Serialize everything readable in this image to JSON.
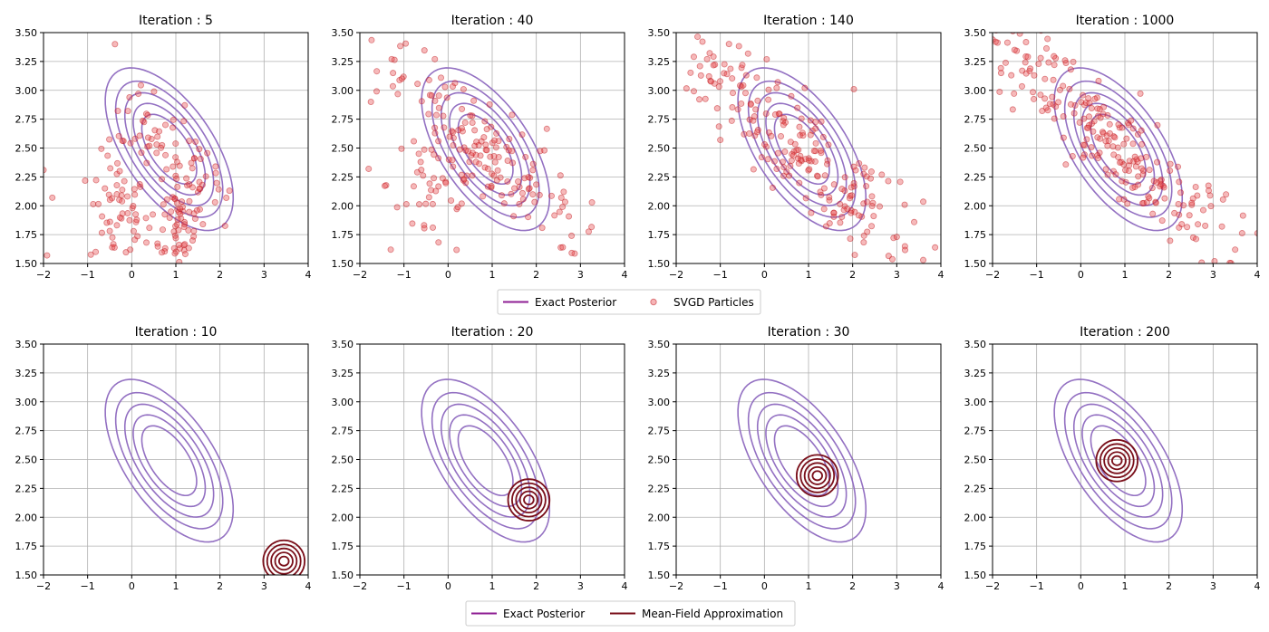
{
  "colors": {
    "exact_posterior": "#9370c2",
    "svgd_particles": "#e8474a",
    "svgd_particle_edge": "#c0151b",
    "mean_field": "#7a0f1a",
    "grid": "#b0b0b0",
    "axis": "#000000",
    "legend_exact_line": "#8e1e93"
  },
  "legends": [
    {
      "items": [
        {
          "label": "Exact Posterior",
          "kind": "line"
        },
        {
          "label": "SVGD Particles",
          "kind": "marker"
        }
      ]
    },
    {
      "items": [
        {
          "label": "Exact Posterior",
          "kind": "line"
        },
        {
          "label": "Mean-Field Approximation",
          "kind": "line-dark"
        }
      ]
    }
  ],
  "chart_data": [
    {
      "type": "scatter",
      "title": "Iteration : 5",
      "row": 0,
      "xlim": [
        -2,
        4
      ],
      "ylim": [
        1.5,
        3.5
      ],
      "xticks": [
        "−2",
        "−1",
        "0",
        "1",
        "2",
        "3",
        "4"
      ],
      "yticks": [
        "1.50",
        "1.75",
        "2.00",
        "2.25",
        "2.50",
        "2.75",
        "3.00",
        "3.25",
        "3.50"
      ],
      "grid": true,
      "posterior": {
        "mean": [
          0.85,
          2.49
        ],
        "stretch_scales": [
          1.05,
          1.38,
          1.7,
          2.05,
          2.45
        ],
        "semi_major": 1.52,
        "semi_minor": 0.1,
        "direction": [
          -0.95,
          0.32
        ]
      },
      "particles": {
        "clusters": [
          {
            "center": [
              0.85,
              2.49
            ],
            "n": 70,
            "spread": 0.95
          },
          {
            "center": [
              -0.3,
              1.95
            ],
            "n": 55,
            "spread": 0.55,
            "spread_y": 0.25
          },
          {
            "center": [
              1.05,
              1.85
            ],
            "n": 60,
            "spread": 0.55,
            "spread_y": 0.2
          }
        ],
        "extra_points": [
          [
            -0.38,
            3.4
          ],
          [
            -2.0,
            2.31
          ],
          [
            -1.8,
            2.07
          ],
          [
            -1.92,
            1.57
          ],
          [
            1.9,
            2.34
          ],
          [
            0.15,
            2.97
          ]
        ]
      }
    },
    {
      "type": "scatter",
      "title": "Iteration : 40",
      "row": 0,
      "xlim": [
        -2,
        4
      ],
      "ylim": [
        1.5,
        3.5
      ],
      "xticks": [
        "−2",
        "−1",
        "0",
        "1",
        "2",
        "3",
        "4"
      ],
      "yticks": [
        "1.50",
        "1.75",
        "2.00",
        "2.25",
        "2.50",
        "2.75",
        "3.00",
        "3.25",
        "3.50"
      ],
      "grid": true,
      "posterior": {
        "mean": [
          0.85,
          2.49
        ],
        "stretch_scales": [
          1.05,
          1.38,
          1.7,
          2.05,
          2.45
        ],
        "semi_major": 1.52,
        "semi_minor": 0.1,
        "direction": [
          -0.95,
          0.32
        ]
      },
      "particles": {
        "clusters": [
          {
            "center": [
              0.85,
              2.49
            ],
            "n": 150,
            "spread": 1.7
          },
          {
            "center": [
              -0.3,
              2.2
            ],
            "n": 45,
            "spread": 0.9,
            "spread_y": 0.35
          }
        ],
        "extra_points": [
          [
            -0.3,
            3.27
          ],
          [
            -1.75,
            2.9
          ],
          [
            -1.8,
            2.32
          ],
          [
            -1.3,
            1.62
          ],
          [
            2.8,
            1.74
          ],
          [
            2.6,
            1.64
          ]
        ]
      }
    },
    {
      "type": "scatter",
      "title": "Iteration : 140",
      "row": 0,
      "xlim": [
        -2,
        4
      ],
      "ylim": [
        1.5,
        3.5
      ],
      "xticks": [
        "−2",
        "−1",
        "0",
        "1",
        "2",
        "3",
        "4"
      ],
      "yticks": [
        "1.50",
        "1.75",
        "2.00",
        "2.25",
        "2.50",
        "2.75",
        "3.00",
        "3.25",
        "3.50"
      ],
      "grid": true,
      "posterior": {
        "mean": [
          0.85,
          2.49
        ],
        "stretch_scales": [
          1.05,
          1.38,
          1.7,
          2.05,
          2.45
        ],
        "semi_major": 1.52,
        "semi_minor": 0.1,
        "direction": [
          -0.95,
          0.32
        ]
      },
      "particles": {
        "clusters": [
          {
            "center": [
              0.85,
              2.49
            ],
            "n": 220,
            "spread": 2.3
          }
        ],
        "extra_points": [
          [
            -1.6,
            3.29
          ],
          [
            -1.3,
            3.27
          ],
          [
            -0.5,
            3.22
          ],
          [
            3.6,
            1.53
          ],
          [
            3.0,
            1.73
          ],
          [
            -1.0,
            2.57
          ]
        ]
      }
    },
    {
      "type": "scatter",
      "title": "Iteration : 1000",
      "row": 0,
      "xlim": [
        -2,
        4
      ],
      "ylim": [
        1.5,
        3.5
      ],
      "xticks": [
        "−2",
        "−1",
        "0",
        "1",
        "2",
        "3",
        "4"
      ],
      "yticks": [
        "1.50",
        "1.75",
        "2.00",
        "2.25",
        "2.50",
        "2.75",
        "3.00",
        "3.25",
        "3.50"
      ],
      "grid": true,
      "posterior": {
        "mean": [
          0.85,
          2.49
        ],
        "stretch_scales": [
          1.05,
          1.38,
          1.7,
          2.05,
          2.45
        ],
        "semi_major": 1.52,
        "semi_minor": 0.1,
        "direction": [
          -0.95,
          0.32
        ]
      },
      "particles": {
        "clusters": [
          {
            "center": [
              0.85,
              2.49
            ],
            "n": 240,
            "spread": 2.35
          }
        ],
        "extra_points": [
          [
            -2.0,
            3.44
          ],
          [
            -1.5,
            3.35
          ],
          [
            -1.2,
            3.29
          ],
          [
            3.5,
            1.62
          ],
          [
            3.2,
            1.82
          ],
          [
            -0.6,
            3.22
          ]
        ]
      }
    },
    {
      "type": "contour",
      "title": "Iteration : 10",
      "row": 1,
      "xlim": [
        -2,
        4
      ],
      "ylim": [
        1.5,
        3.5
      ],
      "xticks": [
        "−2",
        "−1",
        "0",
        "1",
        "2",
        "3",
        "4"
      ],
      "yticks": [
        "1.50",
        "1.75",
        "2.00",
        "2.25",
        "2.50",
        "2.75",
        "3.00",
        "3.25",
        "3.50"
      ],
      "grid": true,
      "posterior": {
        "mean": [
          0.85,
          2.49
        ],
        "stretch_scales": [
          1.05,
          1.38,
          1.7,
          2.05,
          2.45
        ],
        "semi_major": 1.52,
        "semi_minor": 0.1,
        "direction": [
          -0.95,
          0.32
        ]
      },
      "mean_field": {
        "mean": [
          3.45,
          1.62
        ],
        "radii_x": [
          0.11,
          0.2,
          0.29,
          0.38,
          0.47
        ],
        "radii_y": [
          0.04,
          0.075,
          0.11,
          0.145,
          0.18
        ]
      }
    },
    {
      "type": "contour",
      "title": "Iteration : 20",
      "row": 1,
      "xlim": [
        -2,
        4
      ],
      "ylim": [
        1.5,
        3.5
      ],
      "xticks": [
        "−2",
        "−1",
        "0",
        "1",
        "2",
        "3",
        "4"
      ],
      "yticks": [
        "1.50",
        "1.75",
        "2.00",
        "2.25",
        "2.50",
        "2.75",
        "3.00",
        "3.25",
        "3.50"
      ],
      "grid": true,
      "posterior": {
        "mean": [
          0.85,
          2.49
        ],
        "stretch_scales": [
          1.05,
          1.38,
          1.7,
          2.05,
          2.45
        ],
        "semi_major": 1.52,
        "semi_minor": 0.1,
        "direction": [
          -0.95,
          0.32
        ]
      },
      "mean_field": {
        "mean": [
          1.83,
          2.15
        ],
        "radii_x": [
          0.11,
          0.2,
          0.29,
          0.38,
          0.47
        ],
        "radii_y": [
          0.04,
          0.075,
          0.11,
          0.145,
          0.18
        ]
      }
    },
    {
      "type": "contour",
      "title": "Iteration : 30",
      "row": 1,
      "xlim": [
        -2,
        4
      ],
      "ylim": [
        1.5,
        3.5
      ],
      "xticks": [
        "−2",
        "−1",
        "0",
        "1",
        "2",
        "3",
        "4"
      ],
      "yticks": [
        "1.50",
        "1.75",
        "2.00",
        "2.25",
        "2.50",
        "2.75",
        "3.00",
        "3.25",
        "3.50"
      ],
      "grid": true,
      "posterior": {
        "mean": [
          0.85,
          2.49
        ],
        "stretch_scales": [
          1.05,
          1.38,
          1.7,
          2.05,
          2.45
        ],
        "semi_major": 1.52,
        "semi_minor": 0.1,
        "direction": [
          -0.95,
          0.32
        ]
      },
      "mean_field": {
        "mean": [
          1.2,
          2.36
        ],
        "radii_x": [
          0.11,
          0.2,
          0.29,
          0.38,
          0.47
        ],
        "radii_y": [
          0.04,
          0.075,
          0.11,
          0.145,
          0.18
        ]
      }
    },
    {
      "type": "contour",
      "title": "Iteration : 200",
      "row": 1,
      "xlim": [
        -2,
        4
      ],
      "ylim": [
        1.5,
        3.5
      ],
      "xticks": [
        "−2",
        "−1",
        "0",
        "1",
        "2",
        "3",
        "4"
      ],
      "yticks": [
        "1.50",
        "1.75",
        "2.00",
        "2.25",
        "2.50",
        "2.75",
        "3.00",
        "3.25",
        "3.50"
      ],
      "grid": true,
      "posterior": {
        "mean": [
          0.85,
          2.49
        ],
        "stretch_scales": [
          1.05,
          1.38,
          1.7,
          2.05,
          2.45
        ],
        "semi_major": 1.52,
        "semi_minor": 0.1,
        "direction": [
          -0.95,
          0.32
        ]
      },
      "mean_field": {
        "mean": [
          0.82,
          2.49
        ],
        "radii_x": [
          0.11,
          0.2,
          0.29,
          0.38,
          0.47
        ],
        "radii_y": [
          0.04,
          0.075,
          0.11,
          0.145,
          0.18
        ]
      }
    }
  ]
}
